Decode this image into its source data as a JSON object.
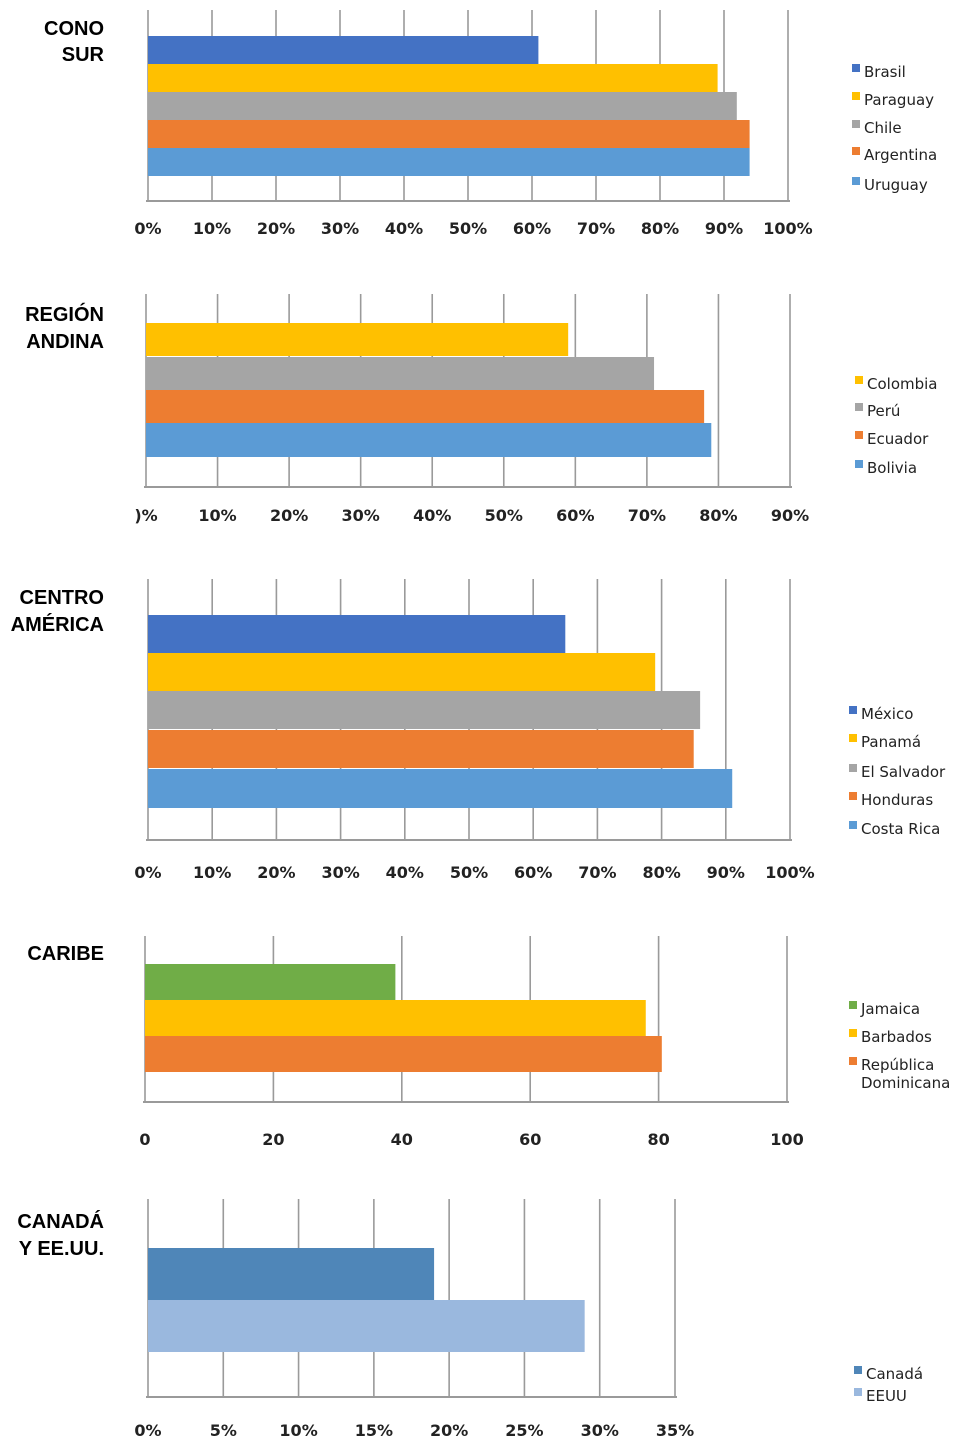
{
  "chart_data": [
    {
      "type": "bar",
      "orientation": "horizontal",
      "title": [
        "CONO",
        "SUR"
      ],
      "xlim": [
        0,
        100
      ],
      "xticks": [
        "0%",
        "10%",
        "20%",
        "30%",
        "40%",
        "50%",
        "60%",
        "70%",
        "80%",
        "90%",
        "100%"
      ],
      "grid": true,
      "legend_position": "right",
      "bars": [
        {
          "name": "Brasil",
          "value": 61,
          "color": "#4472c4"
        },
        {
          "name": "Paraguay",
          "value": 89,
          "color": "#ffc000"
        },
        {
          "name": "Chile",
          "value": 92,
          "color": "#a5a5a5"
        },
        {
          "name": "Argentina",
          "value": 94,
          "color": "#ed7d31"
        },
        {
          "name": "Uruguay",
          "value": 94,
          "color": "#5b9bd5"
        }
      ]
    },
    {
      "type": "bar",
      "orientation": "horizontal",
      "title": [
        "REGIÓN",
        "ANDINA"
      ],
      "xlim": [
        0,
        90
      ],
      "xticks": [
        ")%",
        "10%",
        "20%",
        "30%",
        "40%",
        "50%",
        "60%",
        "70%",
        "80%",
        "90%"
      ],
      "grid": true,
      "legend_position": "right",
      "bars": [
        {
          "name": "Colombia",
          "value": 59,
          "color": "#ffc000"
        },
        {
          "name": "Perú",
          "value": 71,
          "color": "#a5a5a5"
        },
        {
          "name": "Ecuador",
          "value": 78,
          "color": "#ed7d31"
        },
        {
          "name": "Bolivia",
          "value": 79,
          "color": "#5b9bd5"
        }
      ]
    },
    {
      "type": "bar",
      "orientation": "horizontal",
      "title": [
        "CENTRO",
        "AMÉRICA"
      ],
      "xlim": [
        0,
        100
      ],
      "xticks": [
        "0%",
        "10%",
        "20%",
        "30%",
        "40%",
        "50%",
        "60%",
        "70%",
        "80%",
        "90%",
        "100%"
      ],
      "grid": true,
      "legend_position": "right",
      "bars": [
        {
          "name": "México",
          "value": 65,
          "color": "#4472c4"
        },
        {
          "name": "Panamá",
          "value": 79,
          "color": "#ffc000"
        },
        {
          "name": "El Salvador",
          "value": 86,
          "color": "#a5a5a5"
        },
        {
          "name": "Honduras",
          "value": 85,
          "color": "#ed7d31"
        },
        {
          "name": "Costa Rica",
          "value": 91,
          "color": "#5b9bd5"
        }
      ]
    },
    {
      "type": "bar",
      "orientation": "horizontal",
      "title": [
        "CARIBE"
      ],
      "xlim": [
        0,
        100
      ],
      "xticks": [
        "0",
        "20",
        "40",
        "60",
        "80",
        "100"
      ],
      "grid": true,
      "legend_position": "right",
      "bars": [
        {
          "name": "Jamaica",
          "value": 39,
          "color": "#70ad47"
        },
        {
          "name": "Barbados",
          "value": 78,
          "color": "#ffc000"
        },
        {
          "name": [
            "República",
            "Dominicana"
          ],
          "value": 80.5,
          "color": "#ed7d31"
        }
      ]
    },
    {
      "type": "bar",
      "orientation": "horizontal",
      "title": [
        "CANADÁ",
        "Y EE.UU."
      ],
      "xlim": [
        0,
        35
      ],
      "xticks": [
        "0%",
        "5%",
        "10%",
        "15%",
        "20%",
        "25%",
        "30%",
        "35%"
      ],
      "grid": true,
      "legend_position": "right",
      "bars": [
        {
          "name": "Canadá",
          "value": 19,
          "color": "#4f86b8"
        },
        {
          "name": "EEUU",
          "value": 29,
          "color": "#9ab8de"
        }
      ]
    }
  ]
}
